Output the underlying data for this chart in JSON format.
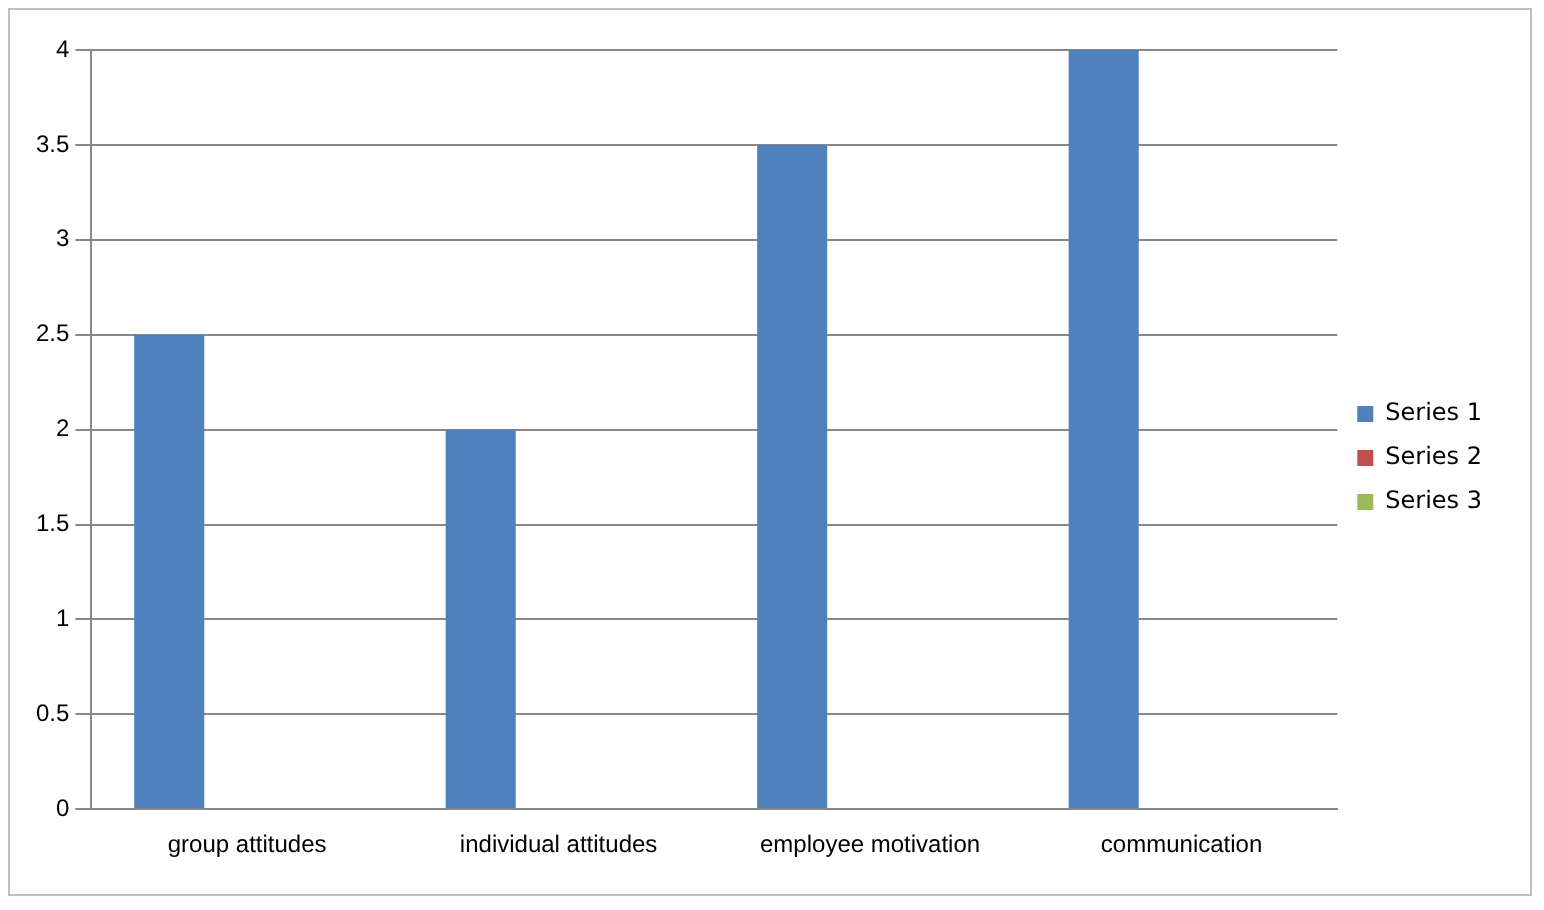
{
  "chart_data": {
    "type": "bar",
    "categories": [
      "group attitudes",
      "individual attitudes",
      "employee motivation",
      "communication"
    ],
    "series": [
      {
        "name": "Series 1",
        "color": "#4f81bd",
        "values": [
          2.5,
          2,
          3.5,
          4
        ]
      },
      {
        "name": "Series 2",
        "color": "#c0504d",
        "values": [
          null,
          null,
          null,
          null
        ]
      },
      {
        "name": "Series 3",
        "color": "#9bbb59",
        "values": [
          null,
          null,
          null,
          null
        ]
      }
    ],
    "ylim": [
      0,
      4
    ],
    "yticks": [
      0,
      0.5,
      1,
      1.5,
      2,
      2.5,
      3,
      3.5,
      4
    ],
    "grid": "y",
    "legend": "right"
  }
}
